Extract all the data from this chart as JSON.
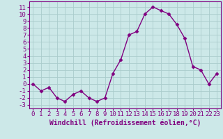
{
  "x": [
    0,
    1,
    2,
    3,
    4,
    5,
    6,
    7,
    8,
    9,
    10,
    11,
    12,
    13,
    14,
    15,
    16,
    17,
    18,
    19,
    20,
    21,
    22,
    23
  ],
  "y": [
    0,
    -1,
    -0.5,
    -2,
    -2.5,
    -1.5,
    -1,
    -2,
    -2.5,
    -2,
    1.5,
    3.5,
    7,
    7.5,
    10,
    11,
    10.5,
    10,
    8.5,
    6.5,
    2.5,
    2,
    0,
    1.5
  ],
  "line_color": "#800080",
  "marker": "D",
  "marker_size": 2.5,
  "bg_color": "#cce8e8",
  "grid_color": "#aacccc",
  "xlabel": "Windchill (Refroidissement éolien,°C)",
  "xlabel_fontsize": 7,
  "yticks": [
    -3,
    -2,
    -1,
    0,
    1,
    2,
    3,
    4,
    5,
    6,
    7,
    8,
    9,
    10,
    11
  ],
  "xticks": [
    0,
    1,
    2,
    3,
    4,
    5,
    6,
    7,
    8,
    9,
    10,
    11,
    12,
    13,
    14,
    15,
    16,
    17,
    18,
    19,
    20,
    21,
    22,
    23
  ],
  "ylim": [
    -3.5,
    11.8
  ],
  "xlim": [
    -0.5,
    23.5
  ],
  "tick_fontsize": 6.5,
  "spine_color": "#800080",
  "linewidth": 1.0
}
